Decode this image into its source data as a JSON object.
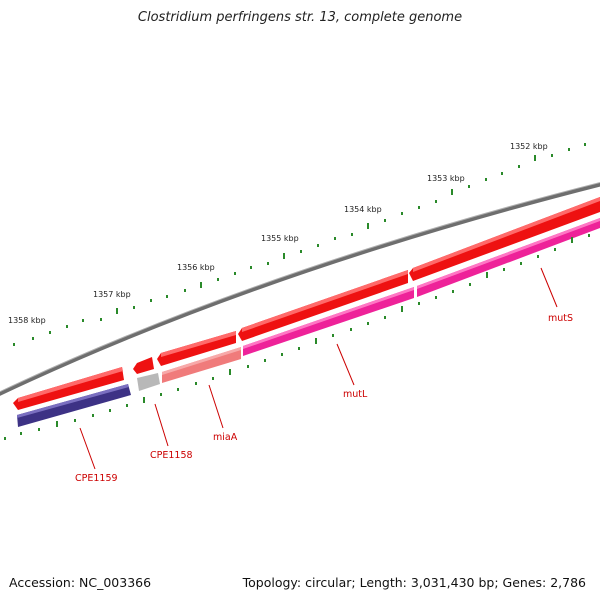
{
  "title": "Clostridium perfringens str. 13, complete genome",
  "footer": {
    "accession": "Accession: NC_003366",
    "topology": "Topology: circular; Length: 3,031,430 bp; Genes: 2,786"
  },
  "ticks": [
    "1352 kbp",
    "1353 kbp",
    "1354 kbp",
    "1355 kbp",
    "1356 kbp",
    "1357 kbp",
    "1358 kbp"
  ],
  "genes": {
    "mutS": "mutS",
    "mutL": "mutL",
    "miaA": "miaA",
    "cpe1158": "CPE1158",
    "cpe1159": "CPE1159"
  },
  "colors": {
    "backbone": "#808080",
    "cds_forward": "#ee1111",
    "gene_magenta": "#ee2299",
    "gene_purple": "#3d3285",
    "gene_grey": "#b8b8b8",
    "gene_pink": "#f07b7b",
    "tick": "#2a8a2a",
    "label_line": "#cc0000"
  }
}
